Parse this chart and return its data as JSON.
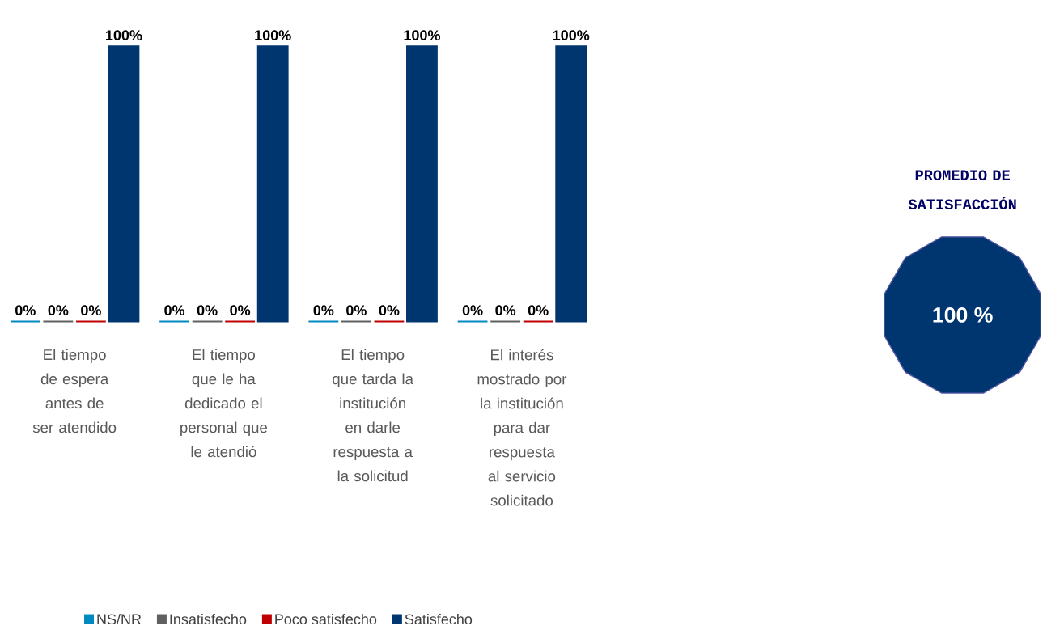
{
  "chart_data": {
    "type": "bar",
    "categories": [
      "El tiempo de espera antes de ser atendido",
      "El tiempo que le ha dedicado el personal que le atendió",
      "El tiempo que tarda la institución en darle respuesta a la solicitud",
      "El interés mostrado por la institución para dar respuesta al servicio solicitado"
    ],
    "series": [
      {
        "name": "NS/NR",
        "color": "#0089c0",
        "values": [
          0,
          0,
          0,
          0
        ],
        "value_labels": [
          "0%",
          "0%",
          "0%",
          "0%"
        ]
      },
      {
        "name": "Insatisfecho",
        "color": "#606060",
        "values": [
          0,
          0,
          0,
          0
        ],
        "value_labels": [
          "0%",
          "0%",
          "0%",
          "0%"
        ]
      },
      {
        "name": "Poco satisfecho",
        "color": "#c00000",
        "values": [
          0,
          0,
          0,
          0
        ],
        "value_labels": [
          "0%",
          "0%",
          "0%",
          "0%"
        ]
      },
      {
        "name": "Satisfecho",
        "color": "#003670",
        "values": [
          100,
          100,
          100,
          100
        ],
        "value_labels": [
          "100%",
          "100%",
          "100%",
          "100%"
        ]
      }
    ],
    "legend": "bottom",
    "annotations": [
      "PROMEDIO DE SATISFACCIÓN",
      "100 %"
    ]
  }
}
